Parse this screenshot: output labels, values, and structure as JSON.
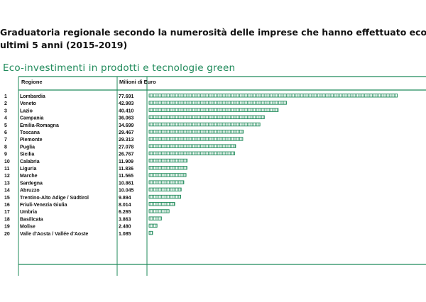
{
  "headline": {
    "line1": "Graduatoria regionale secondo la numerosità delle imprese che hanno effettuato eco-investimenti n",
    "line2": "ultimi 5 anni (2015-2019)"
  },
  "colors": {
    "accent": "#1f8a5a",
    "text": "#111111",
    "bar_fill": "#ffffff"
  },
  "chart_data": {
    "type": "bar",
    "orientation": "horizontal",
    "title": "Eco-investimenti in prodotti e tecnologie green",
    "columns": [
      "Regione",
      "Milioni di Euro"
    ],
    "ranks": [
      "1",
      "2",
      "3",
      "4",
      "5",
      "6",
      "7",
      "8",
      "9",
      "10",
      "11",
      "12",
      "13",
      "14",
      "15",
      "16",
      "17",
      "18",
      "19",
      "20"
    ],
    "categories": [
      "Lombardia",
      "Veneto",
      "Lazio",
      "Campania",
      "Emilia-Romagna",
      "Toscana",
      "Piemonte",
      "Puglia",
      "Sicilia",
      "Calabria",
      "Liguria",
      "Marche",
      "Sardegna",
      "Abruzzo",
      "Trentino-Alto Adige / Südtirol",
      "Friuli-Venezia Giulia",
      "Umbria",
      "Basilicata",
      "Molise",
      "Valle d'Aosta / Vallée d'Aoste"
    ],
    "values": [
      77.691,
      42.983,
      40.41,
      36.063,
      34.699,
      29.467,
      29.313,
      27.078,
      26.767,
      11.909,
      11.836,
      11.565,
      10.861,
      10.045,
      9.894,
      8.014,
      6.265,
      3.863,
      2.48,
      1.085
    ],
    "labels": [
      "77.691",
      "42.983",
      "40.410",
      "36.063",
      "34.699",
      "29.467",
      "29.313",
      "27.078",
      "26.767",
      "11.909",
      "11.836",
      "11.565",
      "10.861",
      "10.045",
      "9.894",
      "8.014",
      "6.265",
      "3.863",
      "2.480",
      "1.085"
    ],
    "xlim": [
      0,
      78
    ],
    "grid": false,
    "legend": "none"
  }
}
